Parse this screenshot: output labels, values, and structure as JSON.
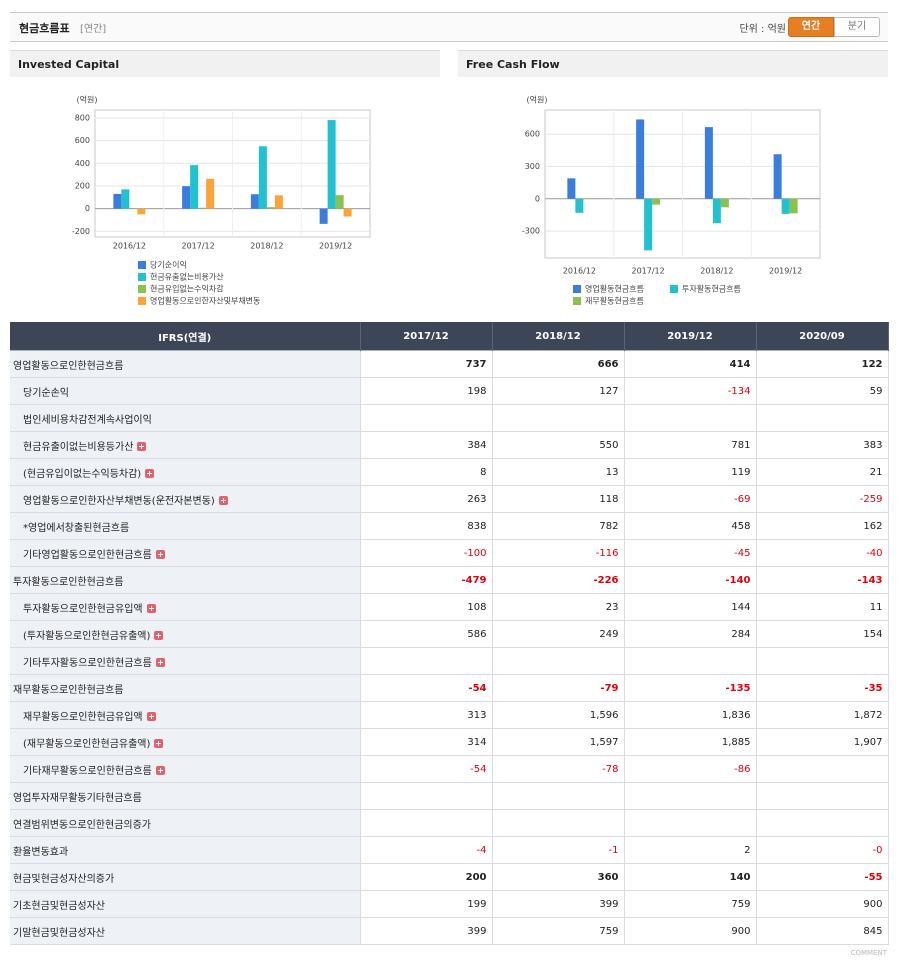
{
  "header": {
    "title": "현금흐름표",
    "period": "[연간]",
    "unit": "단위 : 억원",
    "tabs": [
      "연간",
      "분기"
    ]
  },
  "chart_data": [
    {
      "type": "bar",
      "title": "Invested Capital",
      "y_label": "(억원)",
      "categories": [
        "2016/12",
        "2017/12",
        "2018/12",
        "2019/12"
      ],
      "series": [
        {
          "name": "당기순이익",
          "color": "#3b7ddd",
          "values": [
            130,
            198,
            127,
            -134
          ]
        },
        {
          "name": "현금유출없는비용가산",
          "color": "#22c1cf",
          "values": [
            170,
            384,
            550,
            781
          ]
        },
        {
          "name": "현금유입없는수익차감",
          "color": "#8cc152",
          "values": [
            5,
            8,
            13,
            119
          ]
        },
        {
          "name": "영업활동으로인한자산및부채변동",
          "color": "#fca33a",
          "values": [
            -50,
            263,
            118,
            -69
          ]
        }
      ],
      "ylim": [
        -250,
        870
      ],
      "yticks": [
        -200,
        0,
        200,
        400,
        600,
        800
      ],
      "grid": true
    },
    {
      "type": "bar",
      "title": "Free Cash Flow",
      "y_label": "(억원)",
      "categories": [
        "2016/12",
        "2017/12",
        "2018/12",
        "2019/12"
      ],
      "series": [
        {
          "name": "영업활동현금흐름",
          "color": "#3b7ddd",
          "values": [
            190,
            737,
            666,
            414
          ]
        },
        {
          "name": "투자활동현금흐름",
          "color": "#22c1cf",
          "values": [
            -130,
            -479,
            -226,
            -140
          ]
        },
        {
          "name": "재무활동현금흐름",
          "color": "#8cc152",
          "values": [
            null,
            -54,
            -79,
            -135
          ]
        }
      ],
      "ylim": [
        -550,
        825
      ],
      "yticks": [
        -300,
        0,
        300,
        600
      ],
      "grid": true
    }
  ],
  "table": {
    "header": [
      "IFRS(연결)",
      "2017/12",
      "2018/12",
      "2019/12",
      "2020/09"
    ],
    "rows": [
      {
        "label": "영업활동으로인한현금흐름",
        "bold": true,
        "indent": false,
        "expand": false,
        "values": [
          "737",
          "666",
          "414",
          "122"
        ]
      },
      {
        "label": "당기순손익",
        "bold": false,
        "indent": true,
        "expand": false,
        "values": [
          "198",
          "127",
          "-134",
          "59"
        ]
      },
      {
        "label": "법인세비용차감전계속사업이익",
        "bold": false,
        "indent": true,
        "expand": false,
        "values": [
          null,
          null,
          null,
          null
        ]
      },
      {
        "label": "현금유출이없는비용등가산",
        "bold": false,
        "indent": true,
        "expand": true,
        "values": [
          "384",
          "550",
          "781",
          "383"
        ]
      },
      {
        "label": "(현금유입이없는수익등차감)",
        "bold": false,
        "indent": true,
        "expand": true,
        "values": [
          "8",
          "13",
          "119",
          "21"
        ]
      },
      {
        "label": "영업활동으로인한자산부채변동(운전자본변동)",
        "bold": false,
        "indent": true,
        "expand": true,
        "values": [
          "263",
          "118",
          "-69",
          "-259"
        ]
      },
      {
        "label": "*영업에서창출된현금흐름",
        "bold": false,
        "indent": true,
        "expand": false,
        "values": [
          "838",
          "782",
          "458",
          "162"
        ]
      },
      {
        "label": "기타영업활동으로인한현금흐름",
        "bold": false,
        "indent": true,
        "expand": true,
        "values": [
          "-100",
          "-116",
          "-45",
          "-40"
        ]
      },
      {
        "label": "투자활동으로인한현금흐름",
        "bold": true,
        "indent": false,
        "expand": false,
        "values": [
          "-479",
          "-226",
          "-140",
          "-143"
        ]
      },
      {
        "label": "투자활동으로인한현금유입액",
        "bold": false,
        "indent": true,
        "expand": true,
        "values": [
          "108",
          "23",
          "144",
          "11"
        ]
      },
      {
        "label": "(투자활동으로인한현금유출액)",
        "bold": false,
        "indent": true,
        "expand": true,
        "values": [
          "586",
          "249",
          "284",
          "154"
        ]
      },
      {
        "label": "기타투자활동으로인한현금흐름",
        "bold": false,
        "indent": true,
        "expand": true,
        "values": [
          null,
          null,
          null,
          null
        ]
      },
      {
        "label": "재무활동으로인한현금흐름",
        "bold": true,
        "indent": false,
        "expand": false,
        "values": [
          "-54",
          "-79",
          "-135",
          "-35"
        ]
      },
      {
        "label": "재무활동으로인한현금유입액",
        "bold": false,
        "indent": true,
        "expand": true,
        "values": [
          "313",
          "1,596",
          "1,836",
          "1,872"
        ]
      },
      {
        "label": "(재무활동으로인한현금유출액)",
        "bold": false,
        "indent": true,
        "expand": true,
        "values": [
          "314",
          "1,597",
          "1,885",
          "1,907"
        ]
      },
      {
        "label": "기타재무활동으로인한현금흐름",
        "bold": false,
        "indent": true,
        "expand": true,
        "values": [
          "-54",
          "-78",
          "-86",
          null
        ]
      },
      {
        "label": "영업투자재무활동기타현금흐름",
        "bold": false,
        "indent": false,
        "expand": false,
        "values": [
          null,
          null,
          null,
          null
        ]
      },
      {
        "label": "연결범위변동으로인한현금의증가",
        "bold": false,
        "indent": false,
        "expand": false,
        "values": [
          null,
          null,
          null,
          null
        ]
      },
      {
        "label": "환율변동효과",
        "bold": false,
        "indent": false,
        "expand": false,
        "values": [
          "-4",
          "-1",
          "2",
          "-0"
        ]
      },
      {
        "label": "현금및현금성자산의증가",
        "bold": true,
        "indent": false,
        "expand": false,
        "values": [
          "200",
          "360",
          "140",
          "-55"
        ]
      },
      {
        "label": "기초현금및현금성자산",
        "bold": false,
        "indent": false,
        "expand": false,
        "values": [
          "199",
          "399",
          "759",
          "900"
        ]
      },
      {
        "label": "기말현금및현금성자산",
        "bold": false,
        "indent": false,
        "expand": false,
        "values": [
          "399",
          "759",
          "900",
          "845"
        ]
      }
    ]
  },
  "footer": {
    "comment": "COMMENT"
  }
}
